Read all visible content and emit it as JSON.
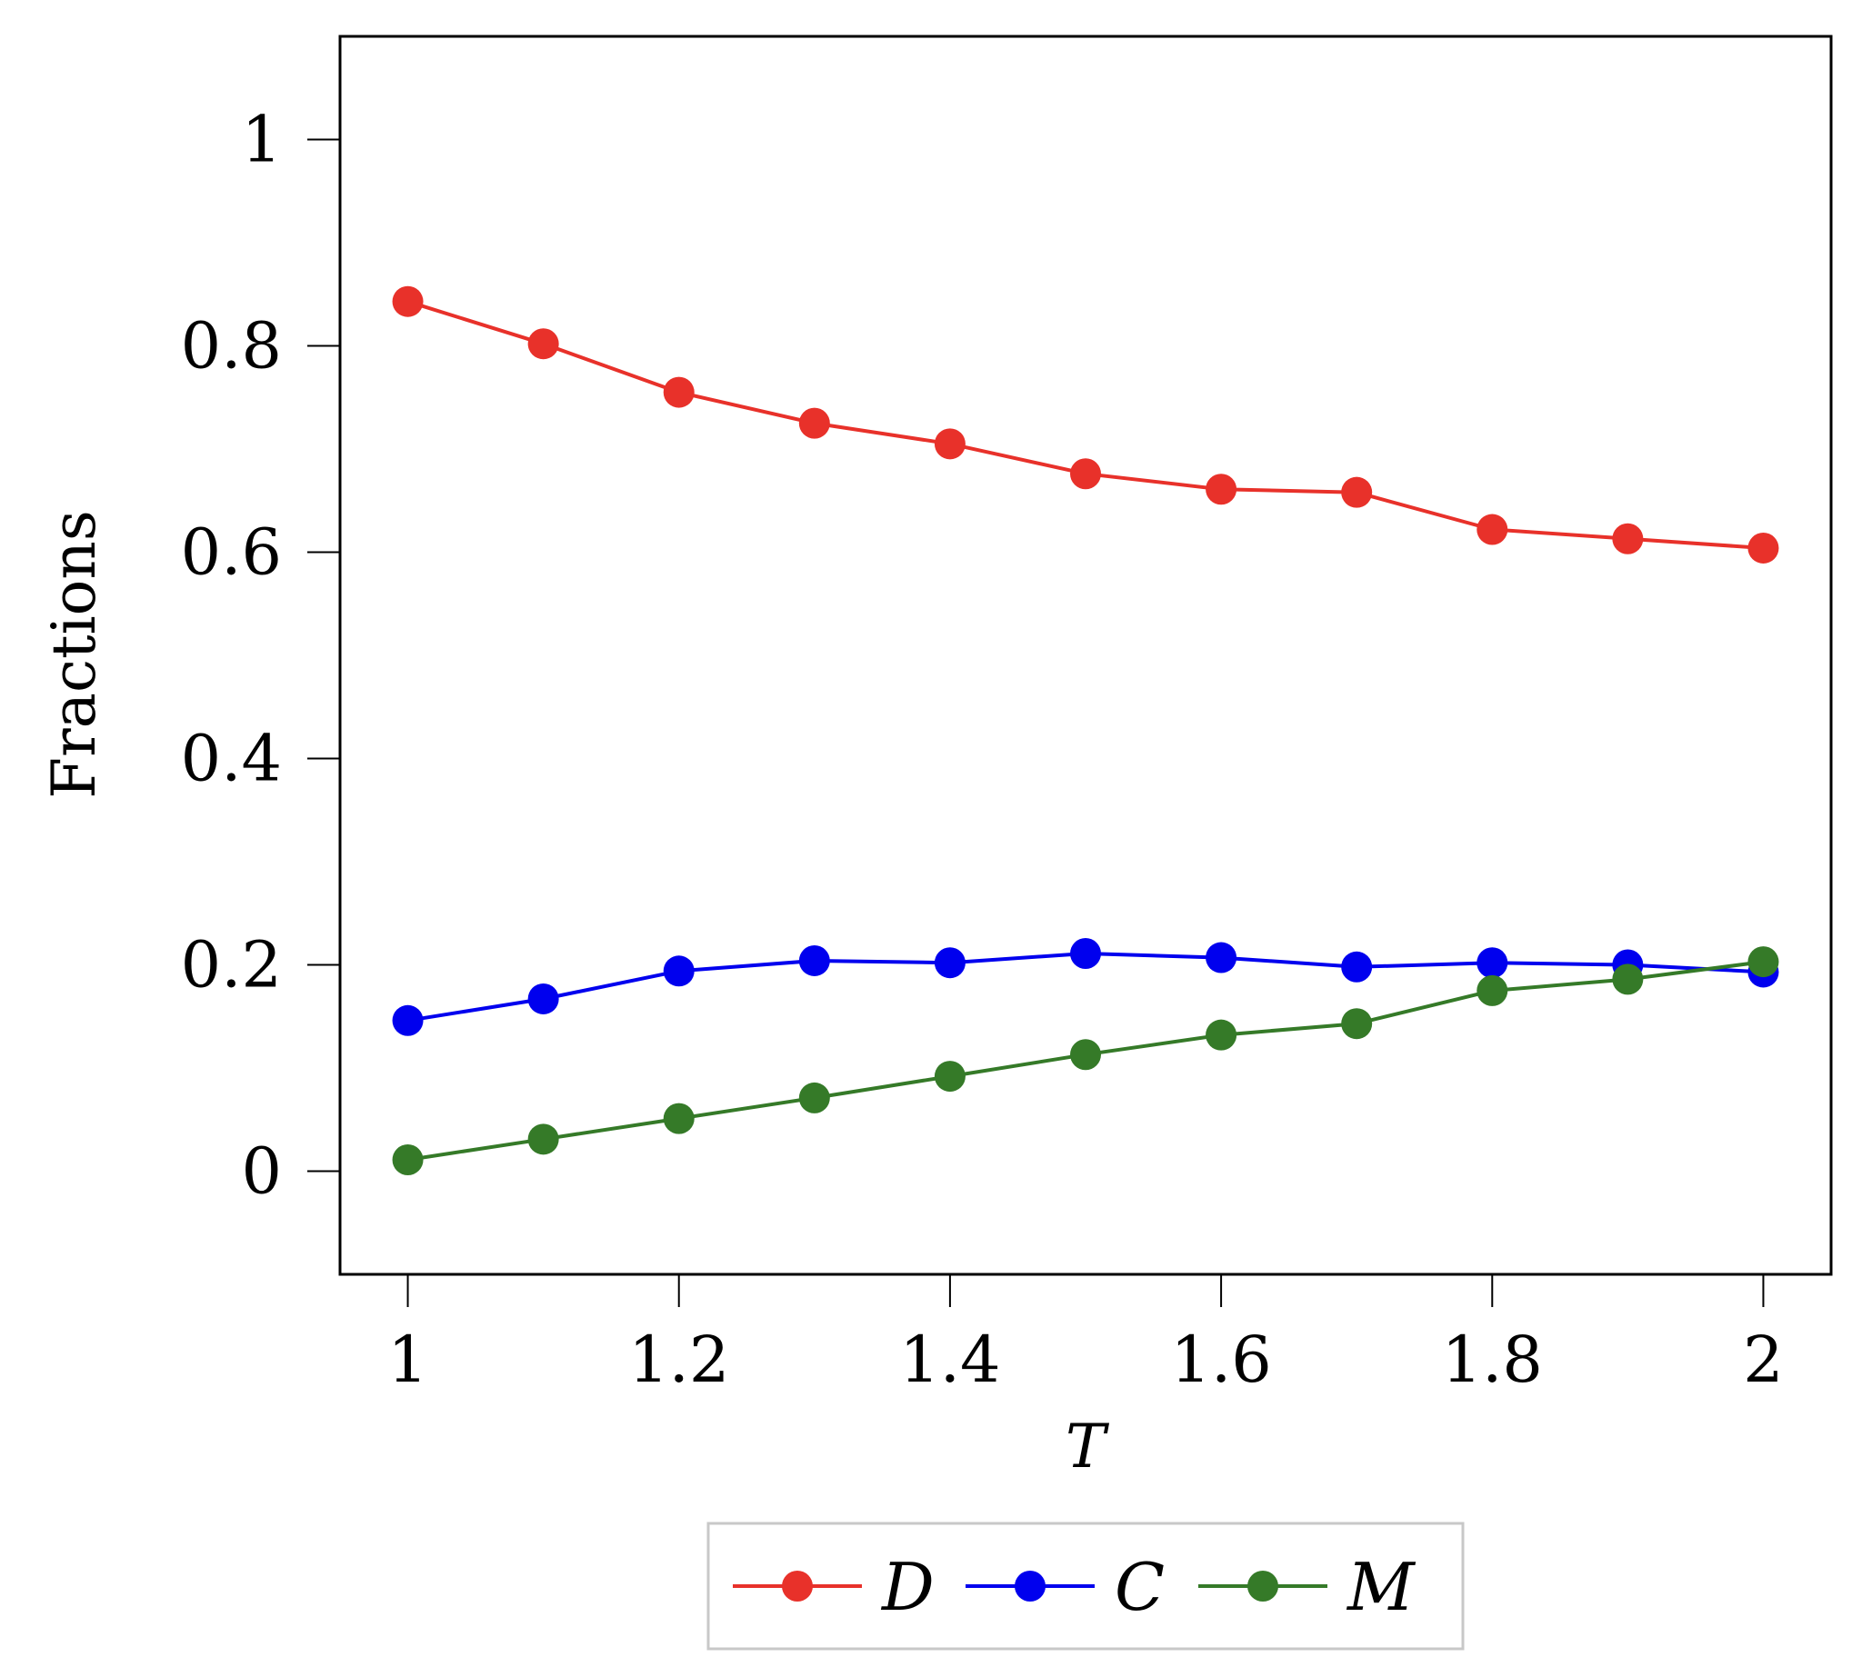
{
  "chart_data": {
    "type": "line",
    "title": "",
    "xlabel": "T",
    "ylabel": "Fractions",
    "xlim": [
      0.95,
      2.05
    ],
    "ylim": [
      -0.1,
      1.1
    ],
    "x": [
      1,
      1.1,
      1.2,
      1.3,
      1.4,
      1.5,
      1.6,
      1.7,
      1.8,
      1.9,
      2
    ],
    "x_ticks": [
      1,
      1.2,
      1.4,
      1.6,
      1.8,
      2
    ],
    "x_tick_labels": [
      "1",
      "1.2",
      "1.4",
      "1.6",
      "1.8",
      "2"
    ],
    "y_ticks": [
      0,
      0.2,
      0.4,
      0.6,
      0.8,
      1
    ],
    "y_tick_labels": [
      "0",
      "0.2",
      "0.4",
      "0.6",
      "0.8",
      "1"
    ],
    "grid": false,
    "legend_position": "bottom-outside",
    "series": [
      {
        "name": "D",
        "color": "#e8312a",
        "values": [
          0.843,
          0.802,
          0.755,
          0.725,
          0.705,
          0.676,
          0.661,
          0.658,
          0.622,
          0.613,
          0.604
        ]
      },
      {
        "name": "C",
        "color": "#0000ee",
        "values": [
          0.146,
          0.167,
          0.194,
          0.204,
          0.202,
          0.211,
          0.207,
          0.198,
          0.202,
          0.2,
          0.193
        ]
      },
      {
        "name": "M",
        "color": "#357a28",
        "values": [
          0.011,
          0.031,
          0.051,
          0.071,
          0.092,
          0.113,
          0.132,
          0.143,
          0.175,
          0.186,
          0.203
        ]
      }
    ]
  }
}
